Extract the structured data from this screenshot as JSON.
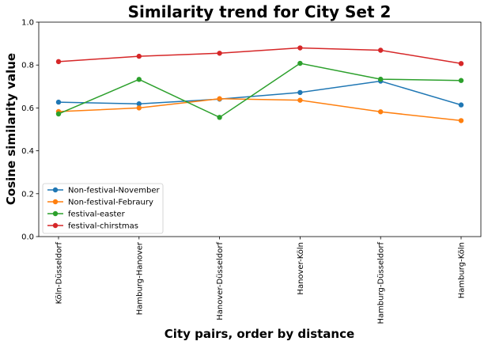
{
  "chart_data": {
    "type": "line",
    "title": "Similarity trend for City Set 2",
    "xlabel": "City pairs, order by distance",
    "ylabel": "Cosine similarity value",
    "ylim": [
      0.0,
      1.0
    ],
    "yticks": [
      "0.0",
      "0.2",
      "0.4",
      "0.6",
      "0.8",
      "1.0"
    ],
    "categories": [
      "Köln-Düsseldorf",
      "Hamburg-Hanover",
      "Hanover-Düsseldorf",
      "Hanover-Köln",
      "Hamburg-Düsseldorf",
      "Hamburg-Köln"
    ],
    "grid": false,
    "legend_position": "lower-left",
    "series": [
      {
        "name": "Non-festival-November",
        "color": "#1f77b4",
        "values": [
          0.627,
          0.619,
          0.641,
          0.672,
          0.725,
          0.614
        ]
      },
      {
        "name": "Non-festival-Febraury",
        "color": "#ff7f0e",
        "values": [
          0.583,
          0.6,
          0.643,
          0.636,
          0.582,
          0.541
        ]
      },
      {
        "name": "festival-easter",
        "color": "#2ca02c",
        "values": [
          0.572,
          0.733,
          0.556,
          0.808,
          0.734,
          0.728
        ]
      },
      {
        "name": "festival-chirstmas",
        "color": "#d62728",
        "values": [
          0.816,
          0.841,
          0.855,
          0.88,
          0.869,
          0.807
        ]
      }
    ]
  }
}
